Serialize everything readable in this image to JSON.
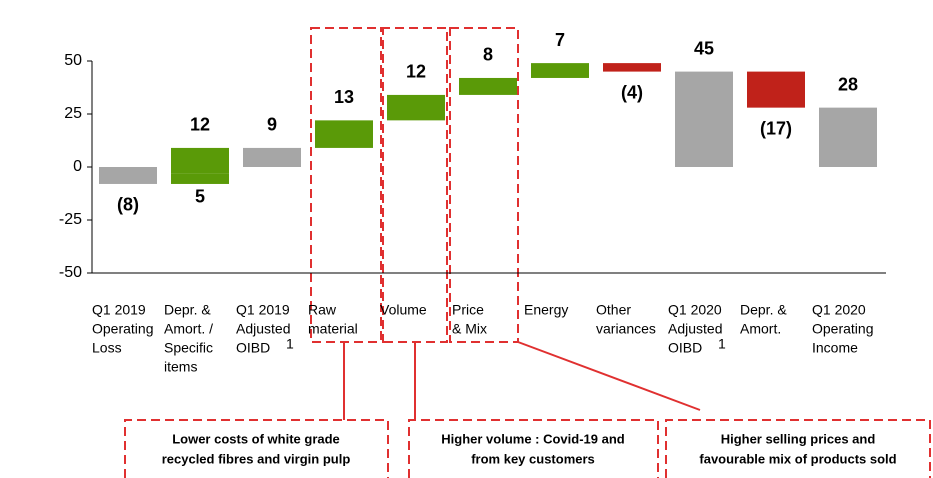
{
  "chart_data": {
    "type": "waterfall",
    "categories": [
      [
        "Q1 2019",
        "Operating",
        "Loss"
      ],
      [
        "Depr. &",
        "Amort. /",
        "Specific",
        "items"
      ],
      [
        "Q1 2019",
        "Adjusted",
        "OIBD"
      ],
      [
        "Raw",
        "material"
      ],
      [
        "Volume"
      ],
      [
        "Price",
        "& Mix"
      ],
      [
        "Energy"
      ],
      [
        "Other",
        "variances"
      ],
      [
        "Q1 2020",
        "Adjusted",
        "OIBD"
      ],
      [
        "Depr. &",
        "Amort."
      ],
      [
        "Q1 2020",
        "Operating",
        "Income"
      ]
    ],
    "footnote_marks": [
      null,
      null,
      "1",
      null,
      null,
      null,
      null,
      null,
      "1",
      null,
      null
    ],
    "bars": [
      {
        "kind": "total",
        "values": [
          -8
        ],
        "value_labels": [
          "(8)"
        ]
      },
      {
        "kind": "increase",
        "values": [
          5,
          12
        ]
      },
      {
        "kind": "total",
        "values": [
          9
        ]
      },
      {
        "kind": "increase",
        "values": [
          13
        ]
      },
      {
        "kind": "increase",
        "values": [
          12
        ]
      },
      {
        "kind": "increase",
        "values": [
          8
        ]
      },
      {
        "kind": "increase",
        "values": [
          7
        ]
      },
      {
        "kind": "decrease",
        "values": [
          -4
        ],
        "value_labels": [
          "(4)"
        ]
      },
      {
        "kind": "total",
        "values": [
          45
        ]
      },
      {
        "kind": "decrease",
        "values": [
          -17
        ],
        "value_labels": [
          "(17)"
        ]
      },
      {
        "kind": "total",
        "values": [
          28
        ]
      }
    ],
    "colors": {
      "total": "#a6a6a6",
      "increase": "#5a9a08",
      "decrease": "#c0221a"
    },
    "ylim": [
      -50,
      50
    ],
    "yticks": [
      -50,
      -25,
      0,
      25,
      50
    ],
    "annotations": [
      [
        "Lower costs of white grade",
        "recycled fibres and virgin pulp"
      ],
      [
        "Higher volume : Covid-19 and",
        "from key customers"
      ],
      [
        "Higher selling prices and",
        "favourable mix of products sold"
      ]
    ]
  }
}
